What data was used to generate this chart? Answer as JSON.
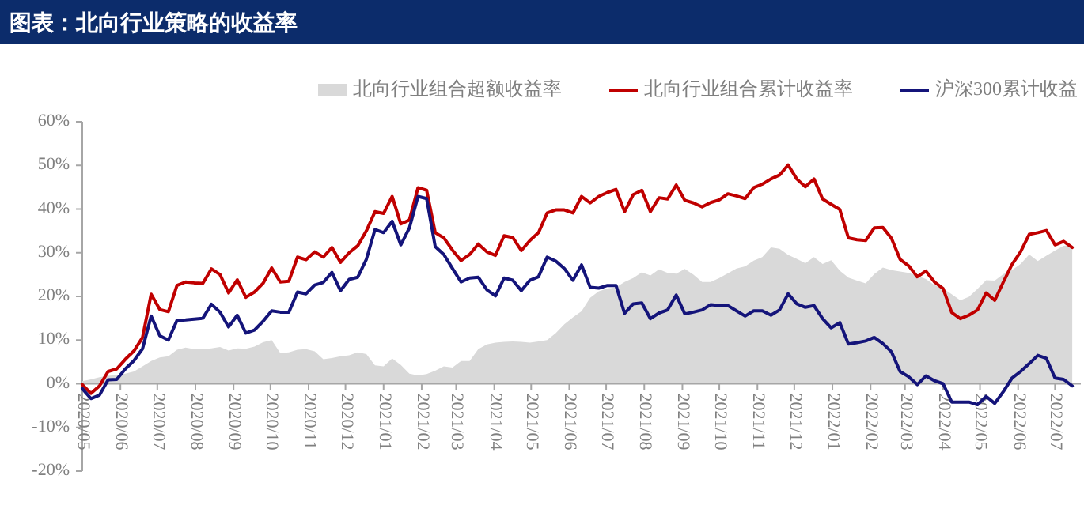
{
  "chart_data": {
    "type": "line",
    "title": "图表：北向行业策略的收益率",
    "legend": "top",
    "x": [
      "2020-05-01",
      "2020-05-08",
      "2020-05-15",
      "2020-05-22",
      "2020-05-29",
      "2020-06-05",
      "2020-06-12",
      "2020-06-19",
      "2020-06-26",
      "2020-07-03",
      "2020-07-10",
      "2020-07-17",
      "2020-07-24",
      "2020-07-31",
      "2020-08-07",
      "2020-08-14",
      "2020-08-21",
      "2020-08-28",
      "2020-09-04",
      "2020-09-11",
      "2020-09-18",
      "2020-09-25",
      "2020-10-02",
      "2020-10-09",
      "2020-10-16",
      "2020-10-23",
      "2020-10-30",
      "2020-11-06",
      "2020-11-13",
      "2020-11-20",
      "2020-11-27",
      "2020-12-04",
      "2020-12-11",
      "2020-12-18",
      "2020-12-25",
      "2021-01-01",
      "2021-01-08",
      "2021-01-15",
      "2021-01-22",
      "2021-01-29",
      "2021-02-05",
      "2021-02-12",
      "2021-02-19",
      "2021-02-26",
      "2021-03-05",
      "2021-03-12",
      "2021-03-19",
      "2021-03-26",
      "2021-04-02",
      "2021-04-09",
      "2021-04-16",
      "2021-04-23",
      "2021-04-30",
      "2021-05-07",
      "2021-05-14",
      "2021-05-21",
      "2021-05-28",
      "2021-06-04",
      "2021-06-11",
      "2021-06-18",
      "2021-06-25",
      "2021-07-02",
      "2021-07-09",
      "2021-07-16",
      "2021-07-23",
      "2021-07-30",
      "2021-08-06",
      "2021-08-13",
      "2021-08-20",
      "2021-08-27",
      "2021-09-03",
      "2021-09-10",
      "2021-09-17",
      "2021-09-24",
      "2021-10-01",
      "2021-10-08",
      "2021-10-15",
      "2021-10-22",
      "2021-10-29",
      "2021-11-05",
      "2021-11-12",
      "2021-11-19",
      "2021-11-26",
      "2021-12-03",
      "2021-12-10",
      "2021-12-17",
      "2021-12-24",
      "2021-12-31",
      "2022-01-07",
      "2022-01-14",
      "2022-01-21",
      "2022-01-28",
      "2022-02-04",
      "2022-02-11",
      "2022-02-18",
      "2022-02-25",
      "2022-03-04",
      "2022-03-11",
      "2022-03-18",
      "2022-03-25",
      "2022-04-01",
      "2022-04-08",
      "2022-04-15",
      "2022-04-22",
      "2022-04-29",
      "2022-05-06",
      "2022-05-13",
      "2022-05-20",
      "2022-05-27",
      "2022-06-03",
      "2022-06-10",
      "2022-06-17",
      "2022-06-24",
      "2022-07-01",
      "2022-07-08",
      "2022-07-15"
    ],
    "series": [
      {
        "name": "北向行业组合超额收益率",
        "type": "area",
        "color": "#d9d9d9",
        "values": [
          0.6,
          1.0,
          1.5,
          1.8,
          2.0,
          2.3,
          2.8,
          4.0,
          5.2,
          6.0,
          6.3,
          7.8,
          8.3,
          7.9,
          7.9,
          8.1,
          8.4,
          7.6,
          8.1,
          8.0,
          8.5,
          9.5,
          10.0,
          7.0,
          7.2,
          7.8,
          7.9,
          7.4,
          5.6,
          5.9,
          6.3,
          6.5,
          7.2,
          6.8,
          4.2,
          4.0,
          5.8,
          4.3,
          2.3,
          1.9,
          2.2,
          3.0,
          4.0,
          3.7,
          5.2,
          5.2,
          7.9,
          9.0,
          9.4,
          9.6,
          9.7,
          9.6,
          9.4,
          9.7,
          10.0,
          11.6,
          13.6,
          15.2,
          16.6,
          19.7,
          21.2,
          21.8,
          22.1,
          23.3,
          24.2,
          25.5,
          24.8,
          26.2,
          25.4,
          25.2,
          26.3,
          25.0,
          23.3,
          23.3,
          24.2,
          25.3,
          26.4,
          26.9,
          28.2,
          29.0,
          31.2,
          30.9,
          29.5,
          28.6,
          27.6,
          29.0,
          27.4,
          28.3,
          25.9,
          24.3,
          23.6,
          23.0,
          25.1,
          26.6,
          26.0,
          25.7,
          25.4,
          24.7,
          24.0,
          22.6,
          21.8,
          20.5,
          19.1,
          19.9,
          21.7,
          23.7,
          23.6,
          25.1,
          26.0,
          27.4,
          29.6,
          28.1,
          29.3,
          30.5,
          31.6,
          31.7
        ]
      },
      {
        "name": "北向行业组合累计收益率",
        "type": "line",
        "color": "#c00000",
        "values": [
          -0.2,
          -2.2,
          -0.5,
          2.8,
          3.4,
          5.6,
          7.5,
          10.6,
          20.5,
          17.0,
          16.5,
          22.5,
          23.3,
          23.1,
          23.0,
          26.3,
          25.0,
          20.8,
          23.8,
          19.8,
          21.0,
          23.0,
          26.5,
          23.3,
          23.5,
          29.0,
          28.4,
          30.2,
          29.0,
          31.2,
          27.8,
          30.0,
          31.6,
          35.0,
          39.4,
          39.0,
          42.9,
          36.6,
          37.5,
          44.9,
          44.3,
          34.6,
          33.4,
          30.6,
          28.2,
          29.6,
          32.0,
          30.2,
          29.4,
          33.9,
          33.5,
          30.5,
          32.8,
          34.6,
          39.1,
          39.8,
          39.8,
          39.1,
          42.9,
          41.4,
          42.9,
          43.8,
          44.5,
          39.4,
          43.3,
          44.3,
          39.4,
          42.6,
          42.3,
          45.5,
          42.0,
          41.4,
          40.5,
          41.5,
          42.1,
          43.5,
          43.0,
          42.4,
          44.9,
          45.7,
          46.9,
          47.8,
          50.1,
          46.9,
          45.1,
          46.9,
          42.3,
          41.1,
          39.9,
          33.4,
          33.0,
          32.8,
          35.7,
          35.8,
          33.3,
          28.5,
          27.0,
          24.5,
          25.8,
          23.3,
          21.8,
          16.3,
          14.9,
          15.7,
          16.9,
          20.8,
          19.1,
          23.3,
          27.3,
          30.2,
          34.2,
          34.6,
          35.1,
          31.8,
          32.6,
          31.2
        ]
      },
      {
        "name": "沪深300累计收益",
        "type": "line",
        "color": "#14147a",
        "values": [
          -1.1,
          -3.4,
          -2.6,
          0.9,
          1.0,
          3.4,
          5.3,
          8.0,
          15.5,
          11.0,
          10.0,
          14.5,
          14.6,
          14.8,
          15.0,
          18.2,
          16.4,
          13.0,
          15.7,
          11.6,
          12.3,
          14.3,
          16.7,
          16.4,
          16.4,
          21.0,
          20.6,
          22.6,
          23.2,
          25.5,
          21.3,
          23.9,
          24.4,
          28.5,
          35.3,
          34.6,
          37.2,
          31.8,
          35.7,
          42.9,
          42.4,
          31.4,
          29.6,
          26.4,
          23.3,
          24.2,
          24.4,
          21.5,
          20.1,
          24.2,
          23.7,
          21.3,
          23.7,
          24.5,
          29.0,
          28.1,
          26.4,
          23.7,
          27.2,
          22.1,
          21.9,
          22.5,
          22.5,
          16.1,
          18.3,
          18.5,
          14.9,
          16.2,
          16.9,
          20.3,
          16.0,
          16.4,
          16.9,
          18.1,
          17.9,
          17.9,
          16.7,
          15.5,
          16.7,
          16.7,
          15.7,
          16.9,
          20.6,
          18.3,
          17.5,
          17.9,
          14.9,
          12.8,
          14.0,
          9.1,
          9.4,
          9.8,
          10.6,
          9.2,
          7.3,
          2.8,
          1.6,
          -0.2,
          1.8,
          0.7,
          0.0,
          -4.2,
          -4.2,
          -4.2,
          -4.8,
          -2.9,
          -4.5,
          -1.8,
          1.3,
          2.8,
          4.6,
          6.5,
          5.8,
          1.3,
          1.0,
          -0.5
        ]
      }
    ],
    "xlim": [
      "2020-05-01",
      "2022-07-22"
    ],
    "xticks": [
      {
        "value": "2020-05-01",
        "label": "2020/05"
      },
      {
        "value": "2020-06-01",
        "label": "2020/06"
      },
      {
        "value": "2020-07-01",
        "label": "2020/07"
      },
      {
        "value": "2020-08-01",
        "label": "2020/08"
      },
      {
        "value": "2020-09-01",
        "label": "2020/09"
      },
      {
        "value": "2020-10-01",
        "label": "2020/10"
      },
      {
        "value": "2020-11-01",
        "label": "2020/11"
      },
      {
        "value": "2020-12-01",
        "label": "2020/12"
      },
      {
        "value": "2021-01-01",
        "label": "2021/01"
      },
      {
        "value": "2021-02-01",
        "label": "2021/02"
      },
      {
        "value": "2021-03-01",
        "label": "2021/03"
      },
      {
        "value": "2021-04-01",
        "label": "2021/04"
      },
      {
        "value": "2021-05-01",
        "label": "2021/05"
      },
      {
        "value": "2021-06-01",
        "label": "2021/06"
      },
      {
        "value": "2021-07-01",
        "label": "2021/07"
      },
      {
        "value": "2021-08-01",
        "label": "2021/08"
      },
      {
        "value": "2021-09-01",
        "label": "2021/09"
      },
      {
        "value": "2021-10-01",
        "label": "2021/10"
      },
      {
        "value": "2021-11-01",
        "label": "2021/11"
      },
      {
        "value": "2021-12-01",
        "label": "2021/12"
      },
      {
        "value": "2022-01-01",
        "label": "2022/01"
      },
      {
        "value": "2022-02-01",
        "label": "2022/02"
      },
      {
        "value": "2022-03-01",
        "label": "2022/03"
      },
      {
        "value": "2022-04-01",
        "label": "2022/04"
      },
      {
        "value": "2022-05-01",
        "label": "2022/05"
      },
      {
        "value": "2022-06-01",
        "label": "2022/06"
      },
      {
        "value": "2022-07-01",
        "label": "2022/07"
      }
    ],
    "ylim": [
      -20,
      60
    ],
    "yticks": [
      {
        "value": -20,
        "label": "-20%"
      },
      {
        "value": -10,
        "label": "-10%"
      },
      {
        "value": 0,
        "label": "0%"
      },
      {
        "value": 10,
        "label": "10%"
      },
      {
        "value": 20,
        "label": "20%"
      },
      {
        "value": 30,
        "label": "30%"
      },
      {
        "value": 40,
        "label": "40%"
      },
      {
        "value": 50,
        "label": "50%"
      },
      {
        "value": 60,
        "label": "60%"
      }
    ]
  }
}
